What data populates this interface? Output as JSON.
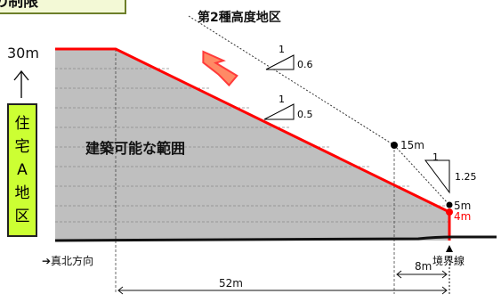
{
  "header": {
    "title": "の制限"
  },
  "labels": {
    "height_district": "第2種高度地区",
    "top_height": "30m",
    "buildable_area": "建築可能な範囲",
    "h15": "15m",
    "h5": "5m",
    "h4": "4m",
    "north": "➔真北方向",
    "boundary": "境界線",
    "dist8": "8m",
    "dist52": "52m"
  },
  "district": {
    "chars": [
      "住",
      "宅",
      "A",
      "地",
      "区"
    ]
  },
  "slopes": [
    {
      "top": "1",
      "bottom": "0.6"
    },
    {
      "top": "1",
      "bottom": "0.5"
    },
    {
      "top": "1",
      "bottom": "1.25"
    }
  ],
  "colors": {
    "gray": "#bfbfbf",
    "red": "#ff0000",
    "orange": "#ff8a65",
    "green_label": "#ccff33"
  }
}
